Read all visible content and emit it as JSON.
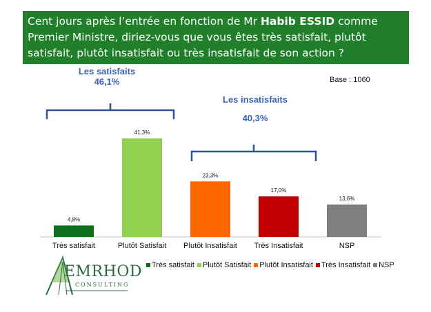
{
  "header": {
    "question_part1": "Cent jours après l’entrée en fonction de Mr ",
    "question_bold": "Habib ESSID",
    "question_part2": " comme Premier Ministre, diriez-vous que vous êtes très satisfait, plutôt satisfait, plutôt insatisfait ou très insatisfait de son action ?"
  },
  "base_label": "Base : 1060",
  "groups": {
    "satisfied": {
      "label": "Les satisfaits",
      "value": "46,1%"
    },
    "unsatisfied": {
      "label": "Les insatisfaits",
      "value": "40,3%"
    }
  },
  "chart_data": {
    "type": "bar",
    "title": "",
    "categories": [
      "Très satisfait",
      "Plutôt Satisfait",
      "Plutôt Insatisfait",
      "Très Insatisfait",
      "NSP"
    ],
    "values": [
      4.8,
      41.3,
      23.3,
      17.0,
      13.6
    ],
    "value_labels": [
      "4,8%",
      "41,3%",
      "23,3%",
      "17,0%",
      "13,6%"
    ],
    "colors": [
      "#0f6e1d",
      "#92d050",
      "#ff6600",
      "#c00000",
      "#7f7f7f"
    ],
    "legend": [
      "Très satisfait",
      "Plutôt Satisfait",
      "Plutôt Insatisfait",
      "Très Insatisfait",
      "NSP"
    ],
    "legend_position": "bottom-right",
    "grid": false
  },
  "logo": {
    "name": "EMRHOD",
    "subtitle": "CONSULTING",
    "accent": "#2b6b40"
  },
  "colors": {
    "banner_bg": "#217e2a",
    "group_text": "#3a62b0",
    "bracket": "#2f4fa0"
  }
}
